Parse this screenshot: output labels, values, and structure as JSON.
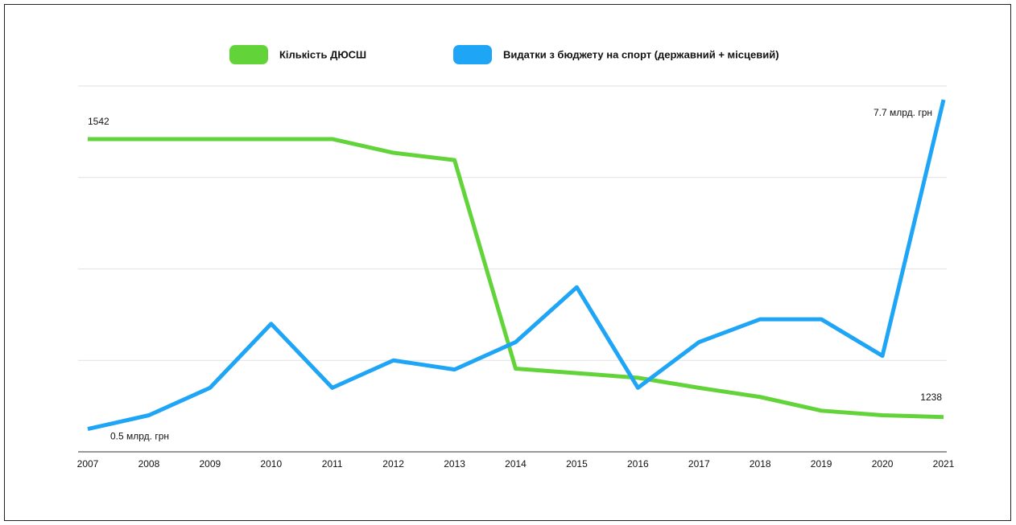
{
  "chart_data": {
    "type": "line",
    "x": [
      "2007",
      "2008",
      "2009",
      "2010",
      "2011",
      "2012",
      "2013",
      "2014",
      "2015",
      "2016",
      "2017",
      "2018",
      "2019",
      "2020",
      "2021"
    ],
    "series": [
      {
        "name": "Кількість ДЮСШ",
        "color": "#62d43a",
        "values": [
          1542,
          1542,
          1542,
          1542,
          1542,
          1527,
          1519,
          1291,
          1286,
          1281,
          1270,
          1260,
          1245,
          1240,
          1238
        ]
      },
      {
        "name": "Видатки з бюджету на спорт (державний + місцевий)",
        "color": "#1ea5f5",
        "axis": "y2",
        "values": [
          0.5,
          0.8,
          1.4,
          2.8,
          1.4,
          2.0,
          1.8,
          2.4,
          3.6,
          1.4,
          2.4,
          2.9,
          2.9,
          2.1,
          7.7
        ],
        "value_labels": [
          "0.5 млрд. грн",
          null,
          null,
          null,
          null,
          null,
          null,
          null,
          null,
          null,
          null,
          null,
          null,
          null,
          "7.7 млрд. грн"
        ]
      }
    ],
    "ylim": [
      1200,
      1600
    ],
    "yticks": [
      1200,
      1300,
      1400,
      1500,
      1600
    ],
    "y2lim": [
      0,
      8
    ],
    "y2ticks": [
      0,
      2,
      4,
      6,
      8
    ],
    "grid": true,
    "legend": "top"
  }
}
